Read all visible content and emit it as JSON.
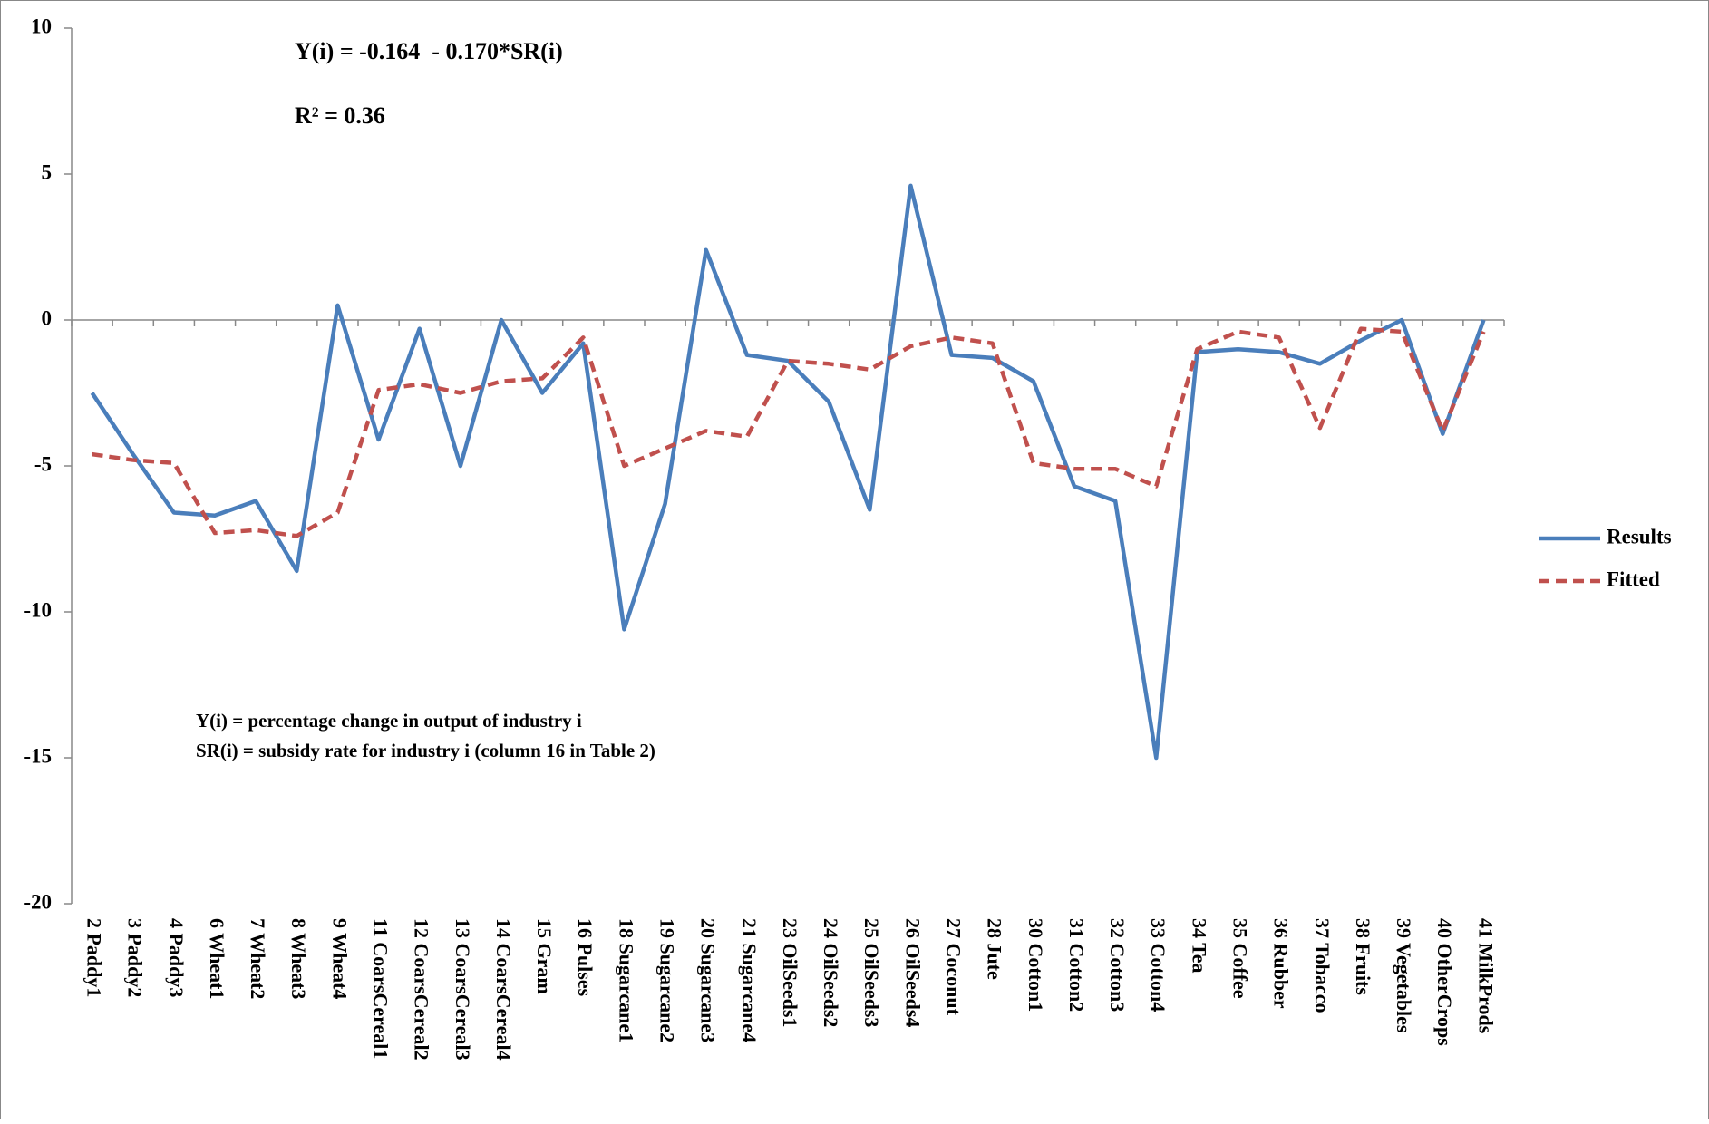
{
  "chart_data": {
    "type": "line",
    "annotations": [
      "Y(i) = -0.164  - 0.170*SR(i)",
      "R² = 0.36",
      "Y(i) = percentage change in output of industry i",
      "SR(i) = subsidy rate for industry i (column 16 in Table 2)"
    ],
    "categories": [
      "2 Paddy1",
      "3 Paddy2",
      "4 Paddy3",
      "6 Wheat1",
      "7 Wheat2",
      "8 Wheat3",
      "9 Wheat4",
      "11 CoarsCereal1",
      "12 CoarsCereal2",
      "13 CoarsCereal3",
      "14 CoarsCereal4",
      "15 Gram",
      "16 Pulses",
      "18 Sugarcane1",
      "19 Sugarcane2",
      "20 Sugarcane3",
      "21 Sugarcane4",
      "23 OilSeeds1",
      "24 OilSeeds2",
      "25 OilSeeds3",
      "26 OilSeeds4",
      "27 Coconut",
      "28 Jute",
      "30 Cotton1",
      "31 Cotton2",
      "32 Cotton3",
      "33 Cotton4",
      "34 Tea",
      "35 Coffee",
      "36 Rubber",
      "37 Tobacco",
      "38 Fruits",
      "39 Vegetables",
      "40 OtherCrops",
      "41 MilkProds"
    ],
    "series": [
      {
        "name": "Results",
        "color": "#4a7ebb",
        "dash": false,
        "values": [
          -2.5,
          -4.6,
          -6.6,
          -6.7,
          -6.2,
          -8.6,
          0.5,
          -4.1,
          -0.3,
          -5.0,
          0,
          -2.5,
          -0.8,
          -10.6,
          -6.3,
          2.4,
          -1.2,
          -1.4,
          -2.8,
          -6.5,
          4.6,
          -1.2,
          -1.3,
          -2.1,
          -5.7,
          -6.2,
          -15.0,
          -1.1,
          -1.0,
          -1.1,
          -1.5,
          -0.7,
          0,
          -3.9,
          0
        ]
      },
      {
        "name": "Fitted",
        "color": "#c0504d",
        "dash": true,
        "values": [
          -4.6,
          -4.8,
          -4.9,
          -7.3,
          -7.2,
          -7.4,
          -6.6,
          -2.4,
          -2.2,
          -2.5,
          -2.1,
          -2.0,
          -0.6,
          -5.0,
          -4.4,
          -3.8,
          -4.0,
          -1.4,
          -1.5,
          -1.7,
          -0.9,
          -0.6,
          -0.8,
          -4.9,
          -5.1,
          -5.1,
          -5.7,
          -1.0,
          -0.4,
          -0.6,
          -3.7,
          -0.3,
          -0.4,
          -3.8,
          -0.4
        ]
      }
    ],
    "ylim": [
      -20,
      10
    ],
    "yticks": [
      -20,
      -15,
      -10,
      -5,
      0,
      5,
      10
    ],
    "grid": false,
    "legend": "right"
  }
}
